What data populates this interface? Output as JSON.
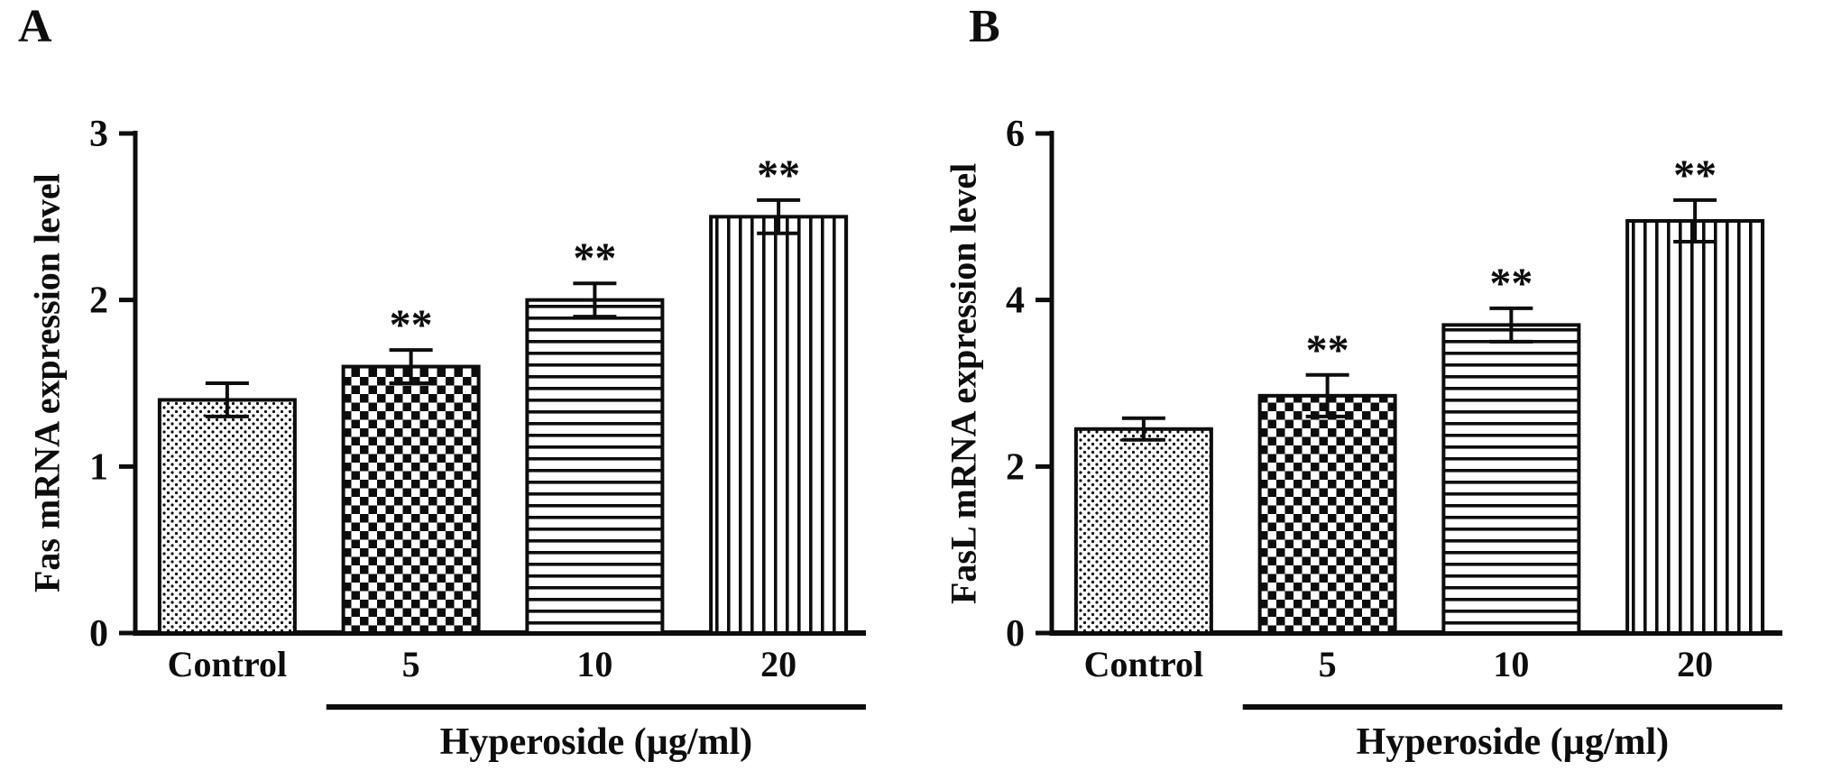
{
  "figure": {
    "background": "#ffffff",
    "ink": "#0d0d0d"
  },
  "chart_data": [
    {
      "type": "bar",
      "panel_label": "A",
      "title": "",
      "xlabel": "",
      "ylabel": "Fas mRNA expression level",
      "categories": [
        "Control",
        "5",
        "10",
        "20"
      ],
      "values": [
        1.4,
        1.6,
        2.0,
        2.5
      ],
      "errors": [
        0.1,
        0.1,
        0.1,
        0.1
      ],
      "significance": [
        "",
        "**",
        "**",
        "**"
      ],
      "ylim": [
        0,
        3
      ],
      "yticks": [
        0,
        1,
        2,
        3
      ],
      "bar_patterns": [
        "dots",
        "checker",
        "hlines",
        "vlines"
      ],
      "group_label": "Hyperoside (µg/ml)",
      "group_span": [
        1,
        3
      ],
      "grid": false,
      "legend": false
    },
    {
      "type": "bar",
      "panel_label": "B",
      "title": "",
      "xlabel": "",
      "ylabel": "FasL mRNA expression level",
      "categories": [
        "Control",
        "5",
        "10",
        "20"
      ],
      "values": [
        2.45,
        2.85,
        3.7,
        4.95
      ],
      "errors": [
        0.13,
        0.25,
        0.2,
        0.25
      ],
      "significance": [
        "",
        "**",
        "**",
        "**"
      ],
      "ylim": [
        0,
        6
      ],
      "yticks": [
        0,
        2,
        4,
        6
      ],
      "bar_patterns": [
        "dots",
        "checker",
        "hlines",
        "vlines"
      ],
      "group_label": "Hyperoside (µg/ml)",
      "group_span": [
        1,
        3
      ],
      "grid": false,
      "legend": false
    }
  ]
}
